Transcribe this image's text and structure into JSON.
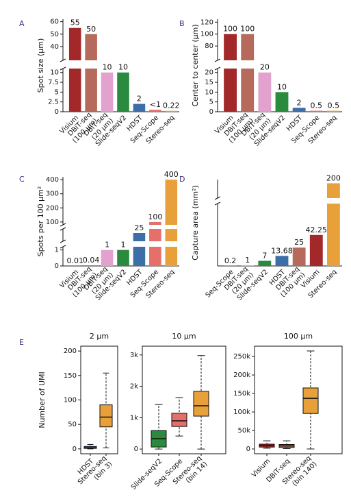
{
  "chart_data": [
    {
      "type": "bar",
      "panel_label": "A",
      "ylabel": "Spot size (μm)",
      "categories": [
        "Visium",
        "DBiT-seq (100 μm)",
        "DBiT-seq (20 μm)",
        "Slide-seqV2",
        "HDST",
        "Seq-Scope",
        "Stereo-seq"
      ],
      "values": [
        55,
        50,
        10,
        10,
        2,
        0.5,
        0.22
      ],
      "value_labels": [
        "55",
        "50",
        "10",
        "10",
        "2",
        "<1",
        "0.22"
      ],
      "colors": [
        "#a3282a",
        "#b66a5c",
        "#e3a2cd",
        "#2a8a3e",
        "#3c6ea8",
        "#e46f6b",
        "#e8a03a"
      ],
      "ylim": [
        0,
        62
      ],
      "ybreaks": [
        [
          11,
          29
        ]
      ],
      "yticks": [
        0,
        2.5,
        5,
        7.5,
        10,
        40,
        50,
        60
      ]
    },
    {
      "type": "bar",
      "panel_label": "B",
      "ylabel": "Center to center (μm)",
      "categories": [
        "Visium",
        "DBiT-seq (100 μm)",
        "DBiT-seq (20 μm)",
        "Slide-seqV2",
        "HDST",
        "Seq-Scope",
        "Stereo-seq"
      ],
      "values": [
        100,
        100,
        20,
        10,
        2,
        0.5,
        0.5
      ],
      "value_labels": [
        "100",
        "100",
        "20",
        "10",
        "2",
        "0.5",
        "0.5"
      ],
      "colors": [
        "#a3282a",
        "#b66a5c",
        "#e3a2cd",
        "#2a8a3e",
        "#3c6ea8",
        "#e46f6b",
        "#e8a03a"
      ],
      "ylim": [
        0,
        125
      ],
      "ybreaks": [
        [
          22,
          56
        ]
      ],
      "yticks": [
        0,
        5,
        10,
        15,
        20,
        80,
        100,
        120
      ]
    },
    {
      "type": "bar",
      "panel_label": "C",
      "ylabel": "Spots per 100 μm²",
      "categories": [
        "Visium",
        "DBiT-seq (100 μm)",
        "DBiT-seq (20 μm)",
        "Slide-seqV2",
        "HDST",
        "Seq-Scope",
        "Stereo-seq"
      ],
      "values": [
        0.01,
        0.04,
        1,
        1,
        25,
        100,
        400
      ],
      "value_labels": [
        "0.01",
        "0.04",
        "1",
        "1",
        "25",
        "100",
        "400"
      ],
      "colors": [
        "#a3282a",
        "#b66a5c",
        "#e3a2cd",
        "#2a8a3e",
        "#3c6ea8",
        "#e46f6b",
        "#e8a03a"
      ],
      "ylim": [
        0,
        420
      ],
      "ybreaks": [
        [
          1.2,
          15
        ],
        [
          30,
          80
        ]
      ],
      "yticks": [
        0,
        1,
        100,
        200,
        300,
        400
      ]
    },
    {
      "type": "bar",
      "panel_label": "D",
      "ylabel": "Capture area (mm²)",
      "categories": [
        "Seq-Scope",
        "DBiT-seq (20 μm)",
        "Slide-seqV2",
        "HDST",
        "DBiT-seq (100 μm)",
        "Visium",
        "Stereo-seq"
      ],
      "values": [
        0.2,
        1,
        7,
        13.68,
        25,
        42.25,
        200
      ],
      "value_labels": [
        "0.2",
        "1",
        "7",
        "13.68",
        "25",
        "42.25",
        "200"
      ],
      "colors": [
        "#e46f6b",
        "#e3a2cd",
        "#2a8a3e",
        "#3c6ea8",
        "#b66a5c",
        "#a3282a",
        "#e8a03a"
      ],
      "ylim": [
        0,
        205
      ],
      "ybreaks": [
        [
          85,
          180
        ]
      ],
      "yticks": []
    },
    {
      "type": "box",
      "panel_label": "E",
      "title": "2 μm",
      "ylabel": "Number of UMI",
      "categories": [
        "HDST",
        "Stereo-seq (bin 3)"
      ],
      "colors": [
        "#3c6ea8",
        "#e8a03a"
      ],
      "boxes": [
        {
          "whislo": 0,
          "q1": 1,
          "med": 2,
          "q3": 5,
          "whishi": 9
        },
        {
          "whislo": 2,
          "q1": 45,
          "med": 65,
          "q3": 90,
          "whishi": 155
        }
      ],
      "ylim": [
        -10,
        210
      ],
      "yticks": [
        0,
        50,
        100,
        150,
        200
      ]
    },
    {
      "type": "box",
      "title": "10 μm",
      "categories": [
        "Slide-seqV2",
        "Seq-Scope",
        "Stereo-seq (bin 14)"
      ],
      "colors": [
        "#2a8a3e",
        "#e46f6b",
        "#e8a03a"
      ],
      "boxes": [
        {
          "whislo": 0,
          "q1": 65,
          "med": 330,
          "q3": 590,
          "whishi": 1420
        },
        {
          "whislo": 415,
          "q1": 720,
          "med": 900,
          "q3": 1140,
          "whishi": 1640
        },
        {
          "whislo": 0,
          "q1": 1050,
          "med": 1380,
          "q3": 1840,
          "whishi": 2980
        }
      ],
      "ylim": [
        -150,
        3280
      ],
      "yticks": [
        0,
        {
          "value": 1000,
          "label": "1k"
        },
        {
          "value": 2000,
          "label": "2k"
        },
        {
          "value": 3000,
          "label": "3k"
        }
      ]
    },
    {
      "type": "box",
      "title": "100 μm",
      "categories": [
        "Visium",
        "DBiT-seq",
        "Stereo-seq (bin 140)"
      ],
      "colors": [
        "#a3282a",
        "#b66a5c",
        "#e8a03a"
      ],
      "boxes": [
        {
          "whislo": 2000,
          "q1": 5000,
          "med": 9000,
          "q3": 13000,
          "whishi": 22000
        },
        {
          "whislo": 1000,
          "q1": 4000,
          "med": 8000,
          "q3": 12000,
          "whishi": 22000
        },
        {
          "whislo": 0,
          "q1": 96000,
          "med": 137000,
          "q3": 165000,
          "whishi": 265000
        }
      ],
      "ylim": [
        -13000,
        278000
      ],
      "yticks": [
        0,
        {
          "value": 50000,
          "label": "50k"
        },
        {
          "value": 100000,
          "label": "100k"
        },
        {
          "value": 150000,
          "label": "150k"
        },
        {
          "value": 200000,
          "label": "200k"
        },
        {
          "value": 250000,
          "label": "250k"
        }
      ]
    }
  ]
}
